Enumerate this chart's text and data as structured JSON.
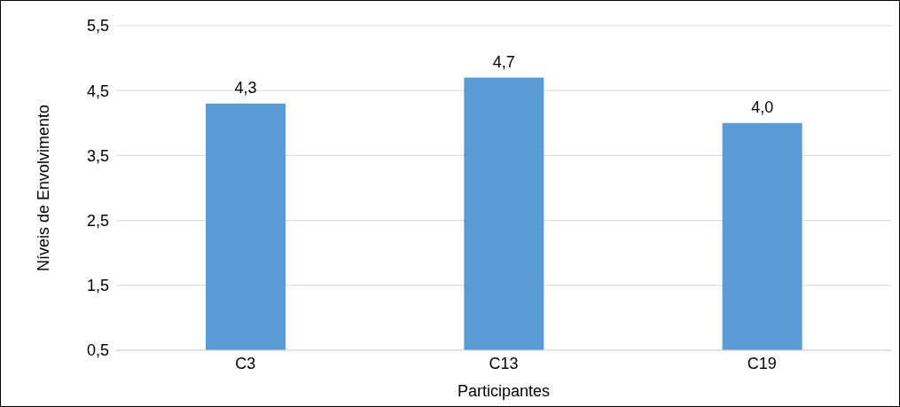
{
  "chart_data": {
    "type": "bar",
    "xlabel": "Participantes",
    "ylabel": "Níveis de Envolvimento",
    "categories": [
      "C3",
      "C13",
      "C19"
    ],
    "values": [
      4.3,
      4.7,
      4.0
    ],
    "value_labels": [
      "4,3",
      "4,7",
      "4,0"
    ],
    "color": "#5b9bd5",
    "ylim": [
      0.5,
      5.5
    ],
    "yticks": [
      {
        "value": 0.5,
        "label": "0,5"
      },
      {
        "value": 1.5,
        "label": "1,5"
      },
      {
        "value": 2.5,
        "label": "2,5"
      },
      {
        "value": 3.5,
        "label": "3,5"
      },
      {
        "value": 4.5,
        "label": "4,5"
      },
      {
        "value": 5.5,
        "label": "5,5"
      }
    ],
    "grid": "y"
  }
}
